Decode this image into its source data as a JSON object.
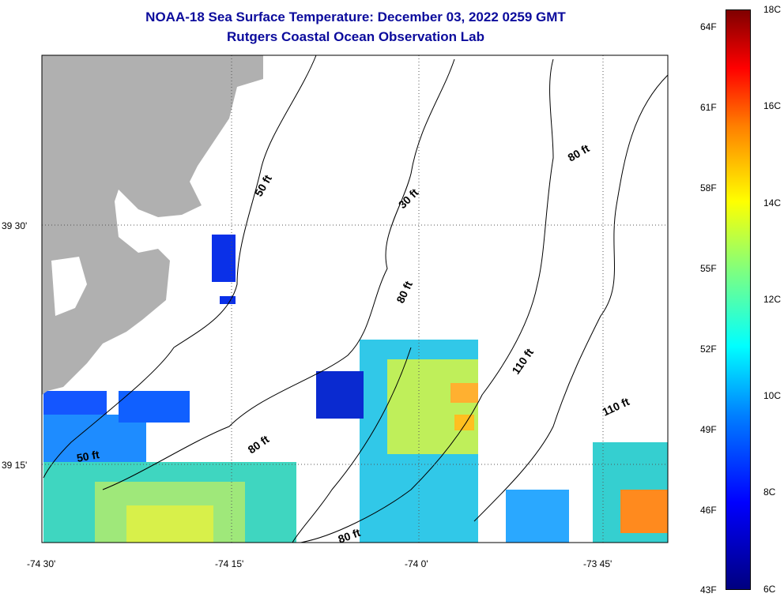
{
  "header": {
    "title": "NOAA-18 Sea Surface Temperature:  December 03, 2022 0259 GMT",
    "subtitle": "Rutgers Coastal Ocean Observation Lab"
  },
  "map": {
    "lat_labels": [
      "39 30'",
      "39 15'"
    ],
    "lon_labels": [
      "-74 30'",
      "-74 15'",
      "-74 0'",
      "-73 45'"
    ],
    "contour_labels": [
      "50 ft",
      "30 ft",
      "80 ft",
      "80 ft",
      "110 ft",
      "110 ft",
      "80 ft",
      "50 ft",
      "80 ft"
    ],
    "colors": {
      "land": "#b0b0b0",
      "graticule": "#555555",
      "frame": "#000000"
    }
  },
  "colorbar": {
    "fahrenheit_labels": [
      "64F",
      "61F",
      "58F",
      "55F",
      "52F",
      "49F",
      "46F",
      "43F"
    ],
    "celsius_labels": [
      "18C",
      "16C",
      "14C",
      "12C",
      "10C",
      "8C",
      "6C"
    ],
    "min_c": 6,
    "max_c": 18
  }
}
